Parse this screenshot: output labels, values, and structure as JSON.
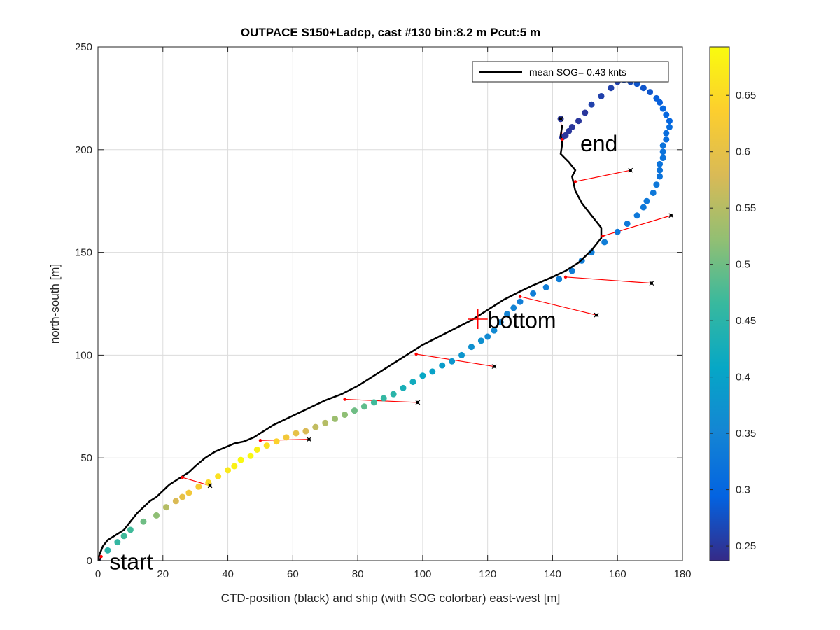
{
  "chart_data": {
    "type": "scatter",
    "title": "OUTPACE S150+Ladcp, cast #130 bin:8.2 m  Pcut:5 m",
    "xlabel": "CTD-position (black) and ship (with SOG colorbar) east-west [m]",
    "ylabel": "north-south [m]",
    "xlim": [
      0,
      180
    ],
    "ylim": [
      0,
      250
    ],
    "xticks": [
      "0",
      "20",
      "40",
      "60",
      "80",
      "100",
      "120",
      "140",
      "160",
      "180"
    ],
    "yticks": [
      "0",
      "50",
      "100",
      "150",
      "200",
      "250"
    ],
    "grid": true,
    "legend": {
      "position": "top-right",
      "label": "mean SOG=  0.43 knts",
      "color": "#000000"
    },
    "annotations": [
      {
        "text": "start",
        "x": 0.5,
        "y": -0.5
      },
      {
        "text": "end",
        "x": 145.5,
        "y": 203
      },
      {
        "text": "bottom",
        "x": 117,
        "y": 117
      }
    ],
    "bottom_marker": {
      "x": 117,
      "y": 117.5,
      "color": "#ff0000"
    },
    "colorbar": {
      "min": 0.237,
      "max": 0.693,
      "ticks": [
        "0.25",
        "0.3",
        "0.35",
        "0.4",
        "0.45",
        "0.5",
        "0.55",
        "0.6",
        "0.65"
      ],
      "colormap": [
        "#352a87",
        "#0363e1",
        "#1485d4",
        "#06a7c6",
        "#38b99e",
        "#92bf73",
        "#d9ba56",
        "#fcce2e",
        "#f9fb0e"
      ]
    },
    "ctd_track": {
      "color": "#000000",
      "x": [
        0,
        0.5,
        1.5,
        3,
        5,
        8,
        10,
        12,
        14,
        16,
        18,
        20,
        22,
        24,
        26,
        28,
        30,
        33,
        36,
        39,
        42,
        45,
        48,
        51,
        54,
        58,
        62,
        66,
        70,
        75,
        80,
        85,
        90,
        95,
        100,
        105,
        110,
        115,
        120,
        125,
        130,
        134,
        137,
        140,
        144,
        148,
        152,
        155,
        155,
        152,
        149,
        147,
        146,
        147,
        145,
        142.5,
        143,
        142.5,
        143
      ],
      "y": [
        0,
        3,
        7,
        10,
        12,
        15,
        19,
        23,
        26,
        29,
        31,
        34,
        37,
        39,
        41,
        43,
        46,
        50,
        53,
        55,
        57,
        58,
        60,
        63,
        66,
        69,
        72,
        75,
        78,
        81,
        85,
        90,
        95,
        100,
        105,
        109,
        113,
        117,
        122,
        127,
        131,
        134,
        136,
        138,
        141,
        145,
        151,
        157,
        162,
        168,
        174,
        180,
        187,
        190,
        194,
        198,
        203,
        207,
        212
      ]
    },
    "ship": {
      "x": [
        0,
        3,
        6,
        8,
        10,
        14,
        18,
        21,
        24,
        26,
        28,
        31,
        34,
        37,
        40,
        42,
        44,
        47,
        49,
        52,
        55,
        58,
        61,
        64,
        67,
        70,
        73,
        76,
        79,
        82,
        85,
        88,
        91,
        94,
        97,
        100,
        103,
        106,
        109,
        112,
        115,
        118,
        120,
        122,
        124,
        126,
        128,
        130,
        134,
        138,
        142,
        146,
        149,
        152,
        156,
        160,
        163,
        166,
        168,
        169,
        171,
        172,
        173,
        173,
        173,
        174,
        174,
        174,
        175,
        175,
        176,
        176,
        175,
        174,
        173,
        172,
        170,
        168,
        166,
        164,
        162,
        160,
        158,
        155,
        152,
        150,
        148,
        146,
        145,
        144,
        143,
        142.5
      ],
      "y": [
        0,
        5,
        9,
        12,
        15,
        19,
        22,
        26,
        29,
        31,
        33,
        36,
        38,
        41,
        44,
        46,
        49,
        51,
        54,
        56,
        58,
        60,
        62,
        63,
        65,
        67,
        69,
        71,
        73,
        75,
        77,
        79,
        81,
        84,
        87,
        90,
        92,
        95,
        97,
        100,
        104,
        107,
        109,
        112,
        116,
        120,
        123,
        126,
        130,
        133,
        137,
        141,
        146,
        150,
        155,
        160,
        164,
        168,
        172,
        175,
        179,
        183,
        187,
        190,
        193,
        196,
        199,
        202,
        205,
        208,
        211,
        214,
        217,
        220,
        223,
        225,
        228,
        230,
        232,
        233,
        234,
        233,
        230,
        226,
        222,
        218,
        214,
        211,
        209,
        207,
        206,
        215
      ],
      "sog": [
        0.25,
        0.45,
        0.46,
        0.47,
        0.47,
        0.5,
        0.52,
        0.55,
        0.58,
        0.6,
        0.62,
        0.63,
        0.65,
        0.66,
        0.67,
        0.68,
        0.69,
        0.69,
        0.68,
        0.66,
        0.64,
        0.62,
        0.6,
        0.58,
        0.56,
        0.55,
        0.53,
        0.52,
        0.5,
        0.49,
        0.47,
        0.46,
        0.45,
        0.43,
        0.42,
        0.41,
        0.4,
        0.39,
        0.38,
        0.38,
        0.37,
        0.37,
        0.36,
        0.36,
        0.35,
        0.35,
        0.35,
        0.34,
        0.34,
        0.34,
        0.34,
        0.34,
        0.34,
        0.34,
        0.34,
        0.33,
        0.33,
        0.33,
        0.33,
        0.33,
        0.33,
        0.33,
        0.32,
        0.32,
        0.32,
        0.32,
        0.32,
        0.32,
        0.31,
        0.31,
        0.31,
        0.3,
        0.3,
        0.3,
        0.29,
        0.29,
        0.28,
        0.28,
        0.28,
        0.27,
        0.27,
        0.26,
        0.26,
        0.26,
        0.26,
        0.25,
        0.25,
        0.25,
        0.25,
        0.25,
        0.25,
        0.25
      ]
    },
    "connectors": {
      "color": "#ff0000",
      "segments": [
        {
          "ctd": [
            1,
            2
          ],
          "ship": [
            0.3,
            0.3
          ]
        },
        {
          "ctd": [
            26,
            40.5
          ],
          "ship": [
            34.5,
            36.5
          ]
        },
        {
          "ctd": [
            50,
            58.5
          ],
          "ship": [
            65,
            59
          ]
        },
        {
          "ctd": [
            76,
            78.5
          ],
          "ship": [
            98.5,
            77
          ]
        },
        {
          "ctd": [
            98,
            100.5
          ],
          "ship": [
            122,
            94.5
          ]
        },
        {
          "ctd": [
            130,
            128.5
          ],
          "ship": [
            153.5,
            119.5
          ]
        },
        {
          "ctd": [
            144,
            138
          ],
          "ship": [
            170.5,
            135
          ]
        },
        {
          "ctd": [
            155.5,
            158
          ],
          "ship": [
            176.5,
            168
          ]
        },
        {
          "ctd": [
            147,
            184.5
          ],
          "ship": [
            164,
            190
          ]
        },
        {
          "ctd": [
            143,
            205
          ],
          "ship": [
            142.5,
            215
          ]
        }
      ]
    }
  }
}
